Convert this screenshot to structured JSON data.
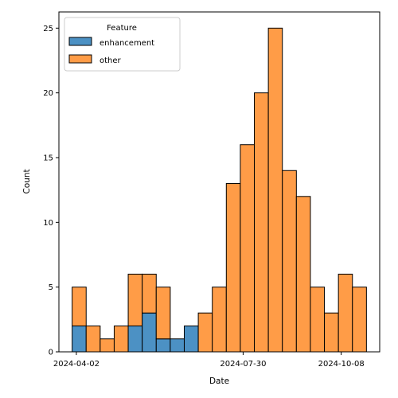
{
  "chart_data": {
    "type": "bar",
    "stacked": true,
    "xlabel": "Date",
    "ylabel": "Count",
    "x_ticks": [
      "2024-04-02",
      "2024-07-30",
      "2024-10-08"
    ],
    "y_ticks": [
      "0",
      "5",
      "10",
      "15",
      "20",
      "25"
    ],
    "ylim": [
      0,
      25
    ],
    "legend": {
      "title": "Feature",
      "placement": "top-left"
    },
    "bins": [
      {
        "start": "2024-03-30",
        "end": "2024-04-09"
      },
      {
        "start": "2024-04-09",
        "end": "2024-04-19"
      },
      {
        "start": "2024-04-19",
        "end": "2024-04-29"
      },
      {
        "start": "2024-04-29",
        "end": "2024-05-09"
      },
      {
        "start": "2024-05-09",
        "end": "2024-05-19"
      },
      {
        "start": "2024-05-19",
        "end": "2024-05-29"
      },
      {
        "start": "2024-05-29",
        "end": "2024-06-08"
      },
      {
        "start": "2024-06-08",
        "end": "2024-06-18"
      },
      {
        "start": "2024-06-18",
        "end": "2024-06-28"
      },
      {
        "start": "2024-06-28",
        "end": "2024-07-08"
      },
      {
        "start": "2024-07-08",
        "end": "2024-07-18"
      },
      {
        "start": "2024-07-18",
        "end": "2024-07-28"
      },
      {
        "start": "2024-07-28",
        "end": "2024-08-07"
      },
      {
        "start": "2024-08-07",
        "end": "2024-08-17"
      },
      {
        "start": "2024-08-17",
        "end": "2024-08-27"
      },
      {
        "start": "2024-08-27",
        "end": "2024-09-06"
      },
      {
        "start": "2024-09-06",
        "end": "2024-09-16"
      },
      {
        "start": "2024-09-16",
        "end": "2024-09-26"
      },
      {
        "start": "2024-09-26",
        "end": "2024-10-06"
      },
      {
        "start": "2024-10-06",
        "end": "2024-10-16"
      },
      {
        "start": "2024-10-16",
        "end": "2024-10-26"
      }
    ],
    "series": [
      {
        "name": "enhancement",
        "color": "#4C91C4",
        "values": [
          2,
          0,
          0,
          0,
          2,
          3,
          1,
          1,
          2,
          0,
          0,
          0,
          0,
          0,
          0,
          0,
          0,
          0,
          0,
          0,
          0
        ]
      },
      {
        "name": "other",
        "color": "#FF9C47",
        "values": [
          3,
          2,
          1,
          2,
          4,
          3,
          4,
          0,
          0,
          3,
          5,
          13,
          16,
          20,
          25,
          14,
          12,
          5,
          3,
          6,
          5
        ]
      }
    ]
  }
}
